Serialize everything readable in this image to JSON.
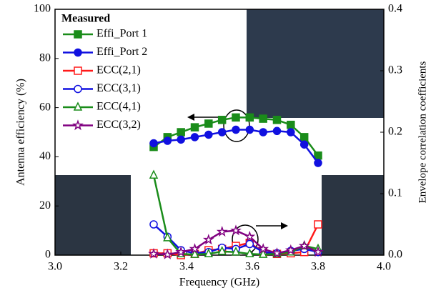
{
  "chart_data": {
    "type": "line",
    "x_label": "Frequency (GHz)",
    "y_label": "Antenna efficiency (%)",
    "y2_label": "Envelope correlation coefficients",
    "legend_title": "Measured",
    "x": [
      3.3,
      3.342,
      3.383,
      3.425,
      3.467,
      3.508,
      3.55,
      3.592,
      3.633,
      3.675,
      3.717,
      3.758,
      3.8
    ],
    "xlim": [
      3.0,
      4.0
    ],
    "xticks": [
      {
        "value": 3.0,
        "label": "3.0"
      },
      3.2,
      3.4,
      3.6,
      3.8,
      {
        "value": 4.0,
        "label": "4.0"
      }
    ],
    "ylim": [
      0,
      100
    ],
    "yticks": [
      0,
      20,
      40,
      60,
      80,
      100
    ],
    "y2lim": [
      0,
      0.4
    ],
    "y2ticks": [
      {
        "value": 0,
        "label": "0.0"
      },
      0.1,
      0.2,
      0.3,
      0.4
    ],
    "series": [
      {
        "name": "Effi_Port 1",
        "color": "#1a8c1a",
        "marker": "square",
        "filled": true,
        "values": [
          44,
          48,
          50,
          52,
          53.5,
          55,
          56,
          56,
          55.5,
          55,
          53,
          48,
          40.5
        ]
      },
      {
        "name": "Effi_Port 2",
        "color": "#1010e0",
        "marker": "circle",
        "filled": true,
        "values": [
          45.5,
          46.5,
          47,
          48,
          49,
          50,
          51,
          51,
          50,
          50.5,
          50,
          45,
          37.5
        ]
      },
      {
        "name": "ECC(2,1)",
        "color": "#ff1a1a",
        "marker": "square",
        "filled": false,
        "axis": "y2",
        "values": [
          0.003,
          0.003,
          0,
          0.002,
          0.008,
          0.01,
          0.015,
          0.02,
          0.005,
          0.002,
          0.003,
          0.005,
          0.05
        ]
      },
      {
        "name": "ECC(3,1)",
        "color": "#1010e0",
        "marker": "circle",
        "filled": false,
        "axis": "y2",
        "values": [
          0.05,
          0.03,
          0.008,
          0.003,
          0.005,
          0.012,
          0.01,
          0.018,
          0.005,
          0.003,
          0.007,
          0.01,
          0.005
        ]
      },
      {
        "name": "ECC(4,1)",
        "color": "#1a8c1a",
        "marker": "triangle",
        "filled": false,
        "axis": "y2",
        "values": [
          0.13,
          0.028,
          0.002,
          0.001,
          0.002,
          0.006,
          0.005,
          0.002,
          0.001,
          0.002,
          0.005,
          0.015,
          0.01
        ]
      },
      {
        "name": "ECC(3,2)",
        "color": "#800080",
        "marker": "star",
        "filled": false,
        "axis": "y2",
        "values": [
          0.002,
          0.001,
          0.005,
          0.01,
          0.025,
          0.038,
          0.04,
          0.03,
          0.01,
          0.003,
          0.008,
          0.015,
          0.005
        ]
      }
    ]
  }
}
